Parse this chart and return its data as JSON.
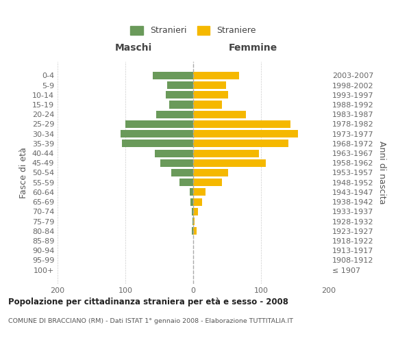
{
  "age_groups": [
    "100+",
    "95-99",
    "90-94",
    "85-89",
    "80-84",
    "75-79",
    "70-74",
    "65-69",
    "60-64",
    "55-59",
    "50-54",
    "45-49",
    "40-44",
    "35-39",
    "30-34",
    "25-29",
    "20-24",
    "15-19",
    "10-14",
    "5-9",
    "0-4"
  ],
  "birth_years": [
    "≤ 1907",
    "1908-1912",
    "1913-1917",
    "1918-1922",
    "1923-1927",
    "1928-1932",
    "1933-1937",
    "1938-1942",
    "1943-1947",
    "1948-1952",
    "1953-1957",
    "1958-1962",
    "1963-1967",
    "1968-1972",
    "1973-1977",
    "1978-1982",
    "1983-1987",
    "1988-1992",
    "1993-1997",
    "1998-2002",
    "2003-2007"
  ],
  "maschi": [
    0,
    0,
    0,
    0,
    2,
    1,
    2,
    4,
    5,
    20,
    32,
    48,
    57,
    105,
    107,
    100,
    55,
    35,
    40,
    38,
    60
  ],
  "femmine": [
    0,
    0,
    0,
    0,
    5,
    2,
    7,
    13,
    18,
    42,
    52,
    107,
    97,
    140,
    155,
    143,
    78,
    42,
    52,
    48,
    68
  ],
  "bar_color_maschi": "#6a9a5a",
  "bar_color_femmine": "#f5b800",
  "title": "Popolazione per cittadinanza straniera per età e sesso - 2008",
  "subtitle": "COMUNE DI BRACCIANO (RM) - Dati ISTAT 1° gennaio 2008 - Elaborazione TUTTITALIA.IT",
  "ylabel_left": "Fasce di età",
  "ylabel_right": "Anni di nascita",
  "xlabel_left": "Maschi",
  "xlabel_right": "Femmine",
  "legend_stranieri": "Stranieri",
  "legend_straniere": "Straniere",
  "xlim": 200,
  "background_color": "#ffffff",
  "grid_color": "#cccccc",
  "dashed_line_color": "#aaaaaa"
}
